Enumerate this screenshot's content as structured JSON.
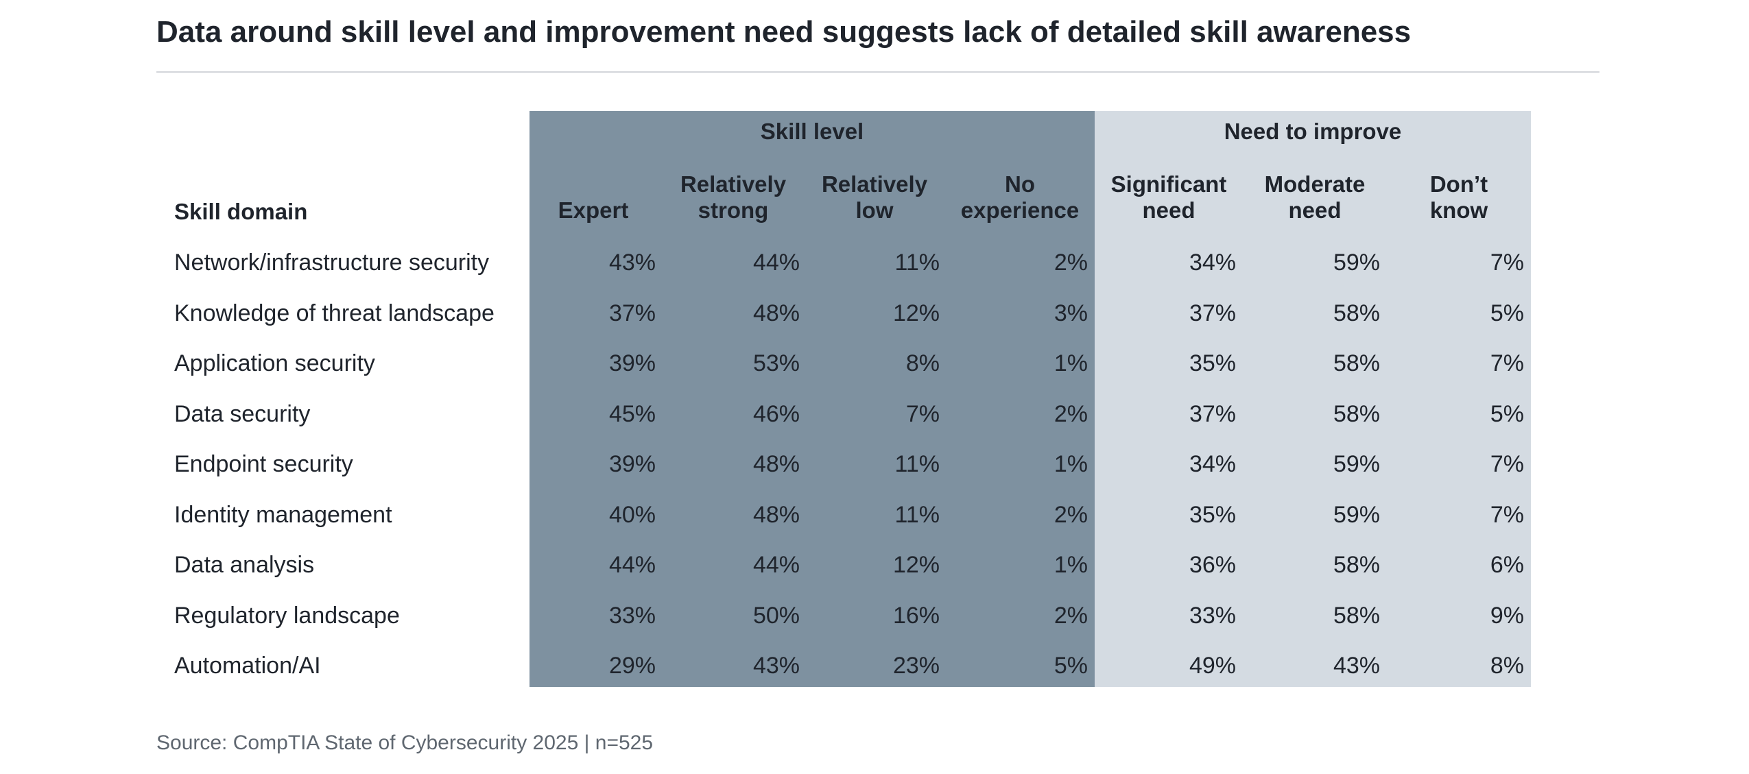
{
  "title": "Data around skill level and improvement need suggests lack of detailed skill awareness",
  "groups": {
    "skill_level": "Skill level",
    "need_to_improve": "Need to improve"
  },
  "headers": {
    "domain": "Skill domain",
    "columns": [
      [
        "Expert"
      ],
      [
        "Relatively",
        "strong"
      ],
      [
        "Relatively",
        "low"
      ],
      [
        "No",
        "experience"
      ],
      [
        "Significant",
        "need"
      ],
      [
        "Moderate",
        "need"
      ],
      [
        "Don’t",
        "know"
      ]
    ]
  },
  "rows": [
    {
      "label": "Network/infrastructure security",
      "values": [
        "43%",
        "44%",
        "11%",
        "2%",
        "34%",
        "59%",
        "7%"
      ]
    },
    {
      "label": "Knowledge of threat landscape",
      "values": [
        "37%",
        "48%",
        "12%",
        "3%",
        "37%",
        "58%",
        "5%"
      ]
    },
    {
      "label": "Application security",
      "values": [
        "39%",
        "53%",
        "8%",
        "1%",
        "35%",
        "58%",
        "7%"
      ]
    },
    {
      "label": "Data security",
      "values": [
        "45%",
        "46%",
        "7%",
        "2%",
        "37%",
        "58%",
        "5%"
      ]
    },
    {
      "label": "Endpoint security",
      "values": [
        "39%",
        "48%",
        "11%",
        "1%",
        "34%",
        "59%",
        "7%"
      ]
    },
    {
      "label": "Identity management",
      "values": [
        "40%",
        "48%",
        "11%",
        "2%",
        "35%",
        "59%",
        "7%"
      ]
    },
    {
      "label": "Data analysis",
      "values": [
        "44%",
        "44%",
        "12%",
        "1%",
        "36%",
        "58%",
        "6%"
      ]
    },
    {
      "label": "Regulatory landscape",
      "values": [
        "33%",
        "50%",
        "16%",
        "2%",
        "33%",
        "58%",
        "9%"
      ]
    },
    {
      "label": "Automation/AI",
      "values": [
        "29%",
        "43%",
        "23%",
        "5%",
        "49%",
        "43%",
        "8%"
      ]
    }
  ],
  "source": "Source: CompTIA State of Cybersecurity 2025 | n=525",
  "colors": {
    "skill_band": "#7e91a0",
    "need_band": "#d4dbe2"
  }
}
